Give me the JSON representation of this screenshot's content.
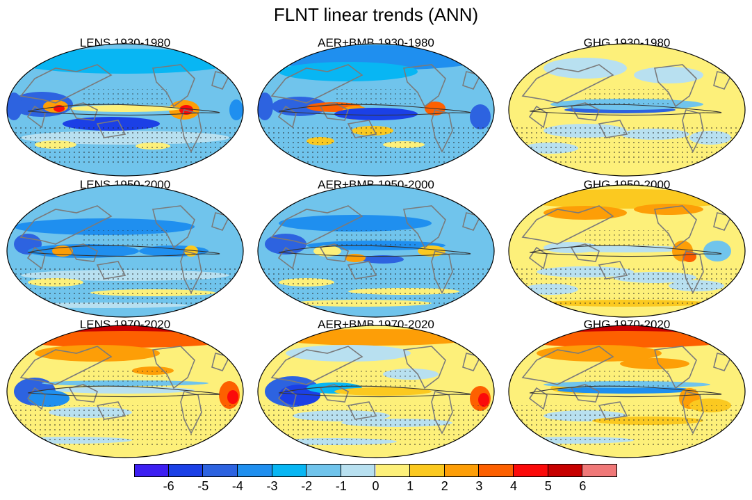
{
  "figure": {
    "title": "FLNT linear trends (ANN)"
  },
  "chart_data": {
    "type": "heatmap",
    "title": "FLNT linear trends (ANN)",
    "projection": "Robinson (global)",
    "rows": [
      "1930-1980",
      "1950-2000",
      "1970-2020"
    ],
    "columns": [
      "LENS",
      "AER+BMB",
      "GHG"
    ],
    "panels": [
      {
        "title": "LENS 1930-1980",
        "overall_sign": "negative",
        "tropics": "mixed, strong positive over Maritime Continent and Central America"
      },
      {
        "title": "AER+BMB 1930-1980",
        "overall_sign": "negative",
        "tropics": "mixed, strong negative band in central Pacific"
      },
      {
        "title": "GHG 1930-1980",
        "overall_sign": "slightly positive",
        "tropics": "negative along equatorial Pacific"
      },
      {
        "title": "LENS 1950-2000",
        "overall_sign": "negative",
        "tropics": "negative"
      },
      {
        "title": "AER+BMB 1950-2000",
        "overall_sign": "negative",
        "tropics": "negative"
      },
      {
        "title": "GHG 1950-2000",
        "overall_sign": "positive",
        "tropics": "mixed"
      },
      {
        "title": "LENS 1970-2020",
        "overall_sign": "positive",
        "tropics": "negative over Indian Ocean, positive elsewhere"
      },
      {
        "title": "AER+BMB 1970-2020",
        "overall_sign": "mixed",
        "tropics": "negative over Indian Ocean"
      },
      {
        "title": "GHG 1970-2020",
        "overall_sign": "positive",
        "tropics": "negative along equatorial Pacific"
      }
    ],
    "colorbar": {
      "levels": [
        -6,
        -5,
        -4,
        -3,
        -2,
        -1,
        0,
        1,
        2,
        3,
        4,
        5,
        6
      ],
      "labels": [
        "-6",
        "-5",
        "-4",
        "-3",
        "-2",
        "-1",
        "0",
        "1",
        "2",
        "3",
        "4",
        "5",
        "6"
      ],
      "colors": [
        "#3d1ff2",
        "#1b40e6",
        "#2d63e0",
        "#1f8fef",
        "#08b6f3",
        "#70c4ec",
        "#b8e0f0",
        "#fdf07a",
        "#fbc920",
        "#fd9e07",
        "#fd6000",
        "#fb0a0a",
        "#c70000",
        "#f07878"
      ]
    },
    "stippling": "dots indicate regions of significance"
  }
}
